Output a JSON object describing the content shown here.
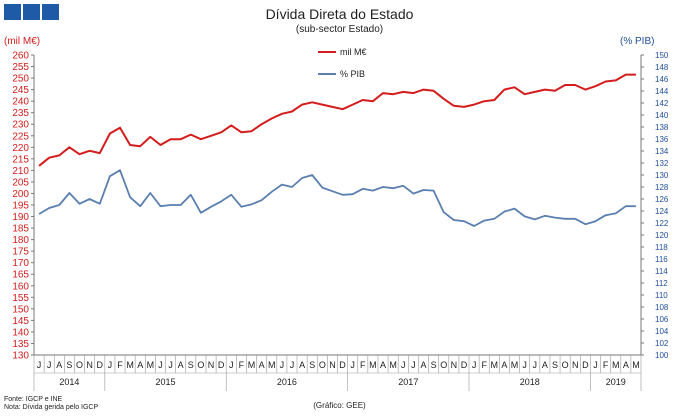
{
  "header": {
    "title": "Dívida Direta do Estado",
    "subtitle": "(sub-sector Estado)",
    "unit_left": "(mil M€)",
    "unit_right": "(% PIB)",
    "logo_color": "#1f5aa6"
  },
  "footer": {
    "source": "Fonte: IGCP e INE",
    "note": "Nota: Dívida gerida pelo IGCP",
    "credit": "(Gráfico: GEE)"
  },
  "chart_data": {
    "type": "line",
    "title": "Dívida Direta do Estado",
    "subtitle": "(sub-sector Estado)",
    "legend_position": "top-center",
    "x": [
      "2014-06",
      "2014-07",
      "2014-08",
      "2014-09",
      "2014-10",
      "2014-11",
      "2014-12",
      "2015-01",
      "2015-02",
      "2015-03",
      "2015-04",
      "2015-05",
      "2015-06",
      "2015-07",
      "2015-08",
      "2015-09",
      "2015-10",
      "2015-11",
      "2015-12",
      "2016-01",
      "2016-02",
      "2016-03",
      "2016-04",
      "2016-05",
      "2016-06",
      "2016-07",
      "2016-08",
      "2016-09",
      "2016-10",
      "2016-11",
      "2016-12",
      "2017-01",
      "2017-02",
      "2017-03",
      "2017-04",
      "2017-05",
      "2017-06",
      "2017-07",
      "2017-08",
      "2017-09",
      "2017-10",
      "2017-11",
      "2017-12",
      "2018-01",
      "2018-02",
      "2018-03",
      "2018-04",
      "2018-05",
      "2018-06",
      "2018-07",
      "2018-08",
      "2018-09",
      "2018-10",
      "2018-11",
      "2018-12",
      "2019-01",
      "2019-02",
      "2019-03",
      "2019-04",
      "2019-05"
    ],
    "month_labels": [
      "J",
      "J",
      "A",
      "S",
      "O",
      "N",
      "D",
      "J",
      "F",
      "M",
      "A",
      "M",
      "J",
      "J",
      "A",
      "S",
      "O",
      "N",
      "D",
      "J",
      "F",
      "M",
      "A",
      "M",
      "J",
      "J",
      "A",
      "S",
      "O",
      "N",
      "D",
      "J",
      "F",
      "M",
      "A",
      "M",
      "J",
      "J",
      "A",
      "S",
      "O",
      "N",
      "D",
      "J",
      "F",
      "M",
      "A",
      "M",
      "J",
      "J",
      "A",
      "S",
      "O",
      "N",
      "D",
      "J",
      "F",
      "M",
      "A",
      "M"
    ],
    "years": [
      {
        "label": "2014",
        "start": 0,
        "end": 6
      },
      {
        "label": "2015",
        "start": 7,
        "end": 18
      },
      {
        "label": "2016",
        "start": 19,
        "end": 30
      },
      {
        "label": "2017",
        "start": 31,
        "end": 42
      },
      {
        "label": "2018",
        "start": 43,
        "end": 54
      },
      {
        "label": "2019",
        "start": 55,
        "end": 59
      }
    ],
    "y_left": {
      "min": 130,
      "max": 260,
      "step": 5,
      "color": "#d41c1c"
    },
    "y_right": {
      "min": 100,
      "max": 150,
      "step": 2,
      "color": "#1f4f9a"
    },
    "grid": false,
    "series": [
      {
        "name": "mil M€",
        "axis": "left",
        "color": "#d41c1c",
        "values": [
          212,
          215.5,
          216.5,
          220,
          217,
          218.5,
          217.5,
          226,
          228.5,
          221,
          220.5,
          224.5,
          221,
          223.5,
          223.5,
          225.5,
          223.5,
          225,
          226.5,
          229.5,
          226.5,
          227,
          230,
          232.5,
          234.5,
          235.5,
          238.5,
          239.5,
          238.5,
          237.5,
          236.5,
          238.5,
          240.5,
          240,
          243.5,
          243,
          244,
          243.5,
          245,
          244.5,
          241,
          238,
          237.5,
          238.5,
          240,
          240.5,
          245,
          246,
          243,
          244,
          245,
          244.5,
          247,
          247,
          245,
          246.5,
          248.5,
          249,
          251.5,
          251.5
        ]
      },
      {
        "name": "% PIB",
        "axis": "right",
        "color": "#5a7fb0",
        "values": [
          123.5,
          124.5,
          125,
          127,
          125.2,
          126,
          125.2,
          129.8,
          130.8,
          126.3,
          124.8,
          127,
          124.8,
          125,
          125,
          126.7,
          123.7,
          124.7,
          125.6,
          126.7,
          124.7,
          125.1,
          125.8,
          127.2,
          128.4,
          128,
          129.5,
          130,
          127.9,
          127.3,
          126.7,
          126.8,
          127.7,
          127.4,
          128,
          127.8,
          128.2,
          126.9,
          127.5,
          127.4,
          123.8,
          122.5,
          122.3,
          121.5,
          122.4,
          122.7,
          123.9,
          124.4,
          123.1,
          122.6,
          123.2,
          122.9,
          122.7,
          122.7,
          121.8,
          122.3,
          123.3,
          123.6,
          124.8,
          124.8
        ]
      }
    ]
  }
}
